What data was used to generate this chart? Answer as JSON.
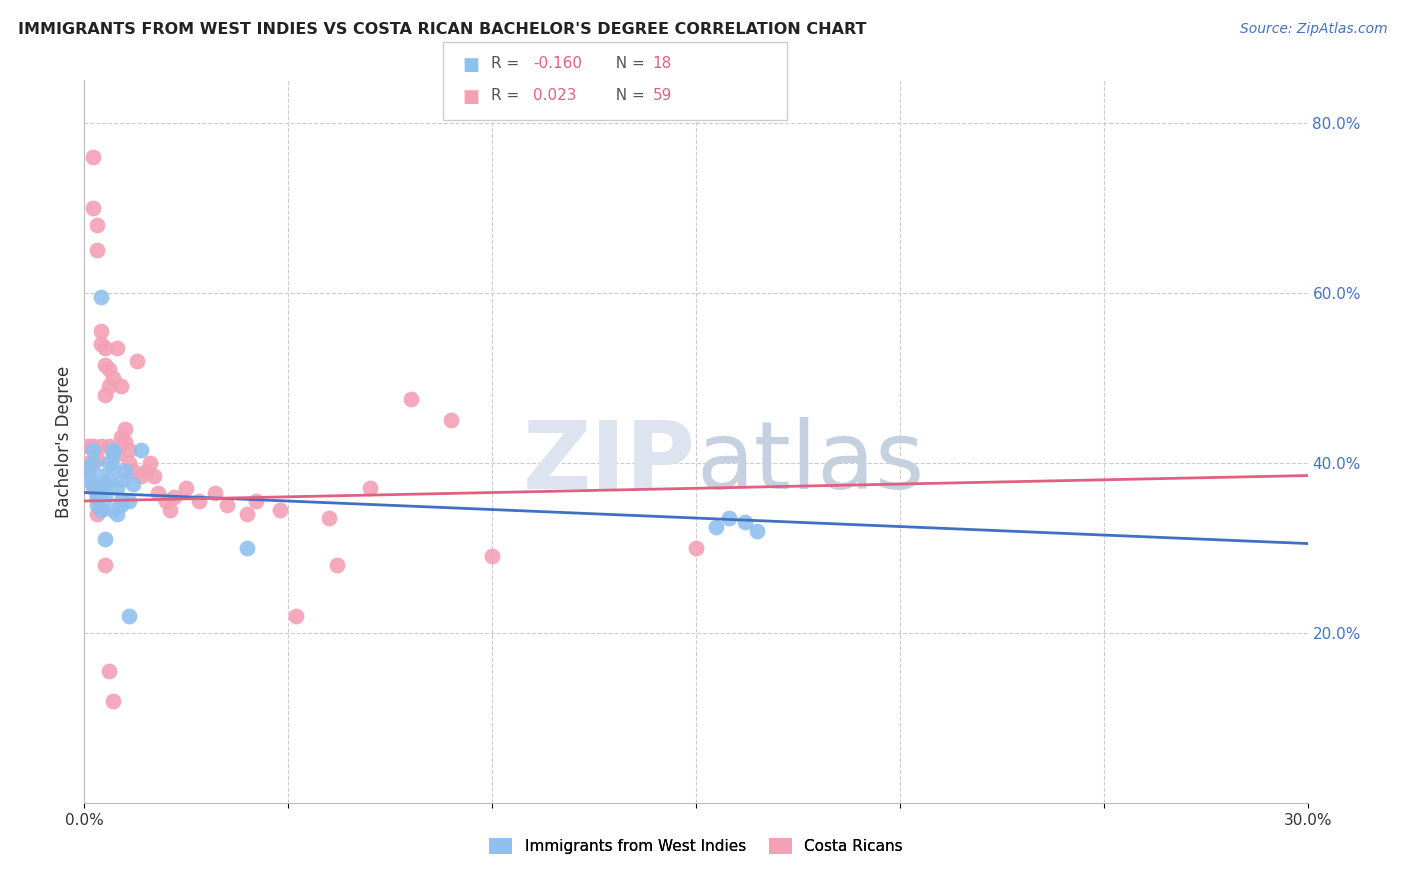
{
  "title": "IMMIGRANTS FROM WEST INDIES VS COSTA RICAN BACHELOR'S DEGREE CORRELATION CHART",
  "source": "Source: ZipAtlas.com",
  "ylabel": "Bachelor's Degree",
  "xlim": [
    0.0,
    0.3
  ],
  "ylim": [
    0.0,
    0.85
  ],
  "xticks": [
    0.0,
    0.05,
    0.1,
    0.15,
    0.2,
    0.25,
    0.3
  ],
  "xtick_labels": [
    "0.0%",
    "",
    "",
    "",
    "",
    "",
    "30.0%"
  ],
  "yticks_right": [
    0.2,
    0.4,
    0.6,
    0.8
  ],
  "ytick_labels_right": [
    "20.0%",
    "40.0%",
    "60.0%",
    "80.0%"
  ],
  "blue_color": "#90C0EE",
  "pink_color": "#F4A0B5",
  "blue_line_color": "#4070C0",
  "pink_line_color": "#E06080",
  "legend_label_blue": "Immigrants from West Indies",
  "legend_label_pink": "Costa Ricans",
  "blue_line_x0": 0.0,
  "blue_line_y0": 0.365,
  "blue_line_x1": 0.3,
  "blue_line_y1": 0.305,
  "pink_line_x0": 0.0,
  "pink_line_y0": 0.355,
  "pink_line_x1": 0.3,
  "pink_line_y1": 0.385,
  "blue_x": [
    0.001,
    0.001,
    0.002,
    0.002,
    0.002,
    0.003,
    0.003,
    0.003,
    0.004,
    0.004,
    0.005,
    0.005,
    0.006,
    0.006,
    0.007,
    0.007,
    0.008,
    0.009,
    0.01,
    0.011,
    0.155,
    0.158,
    0.162,
    0.165,
    0.003,
    0.004,
    0.007,
    0.008,
    0.009,
    0.012,
    0.014,
    0.004,
    0.005,
    0.007,
    0.009,
    0.011,
    0.04
  ],
  "blue_y": [
    0.395,
    0.38,
    0.4,
    0.375,
    0.415,
    0.365,
    0.36,
    0.35,
    0.37,
    0.385,
    0.36,
    0.375,
    0.4,
    0.38,
    0.395,
    0.41,
    0.37,
    0.38,
    0.39,
    0.355,
    0.325,
    0.335,
    0.33,
    0.32,
    0.36,
    0.345,
    0.415,
    0.34,
    0.355,
    0.375,
    0.415,
    0.595,
    0.31,
    0.345,
    0.35,
    0.22,
    0.3
  ],
  "pink_x": [
    0.001,
    0.001,
    0.001,
    0.002,
    0.002,
    0.002,
    0.003,
    0.003,
    0.003,
    0.004,
    0.004,
    0.004,
    0.005,
    0.005,
    0.005,
    0.006,
    0.006,
    0.006,
    0.007,
    0.007,
    0.008,
    0.008,
    0.009,
    0.009,
    0.01,
    0.01,
    0.011,
    0.011,
    0.012,
    0.013,
    0.014,
    0.015,
    0.016,
    0.017,
    0.018,
    0.02,
    0.021,
    0.022,
    0.025,
    0.028,
    0.032,
    0.035,
    0.04,
    0.042,
    0.048,
    0.052,
    0.06,
    0.062,
    0.07,
    0.08,
    0.09,
    0.1,
    0.15,
    0.002,
    0.003,
    0.004,
    0.005,
    0.006,
    0.007
  ],
  "pink_y": [
    0.42,
    0.39,
    0.4,
    0.76,
    0.7,
    0.42,
    0.68,
    0.65,
    0.405,
    0.555,
    0.54,
    0.42,
    0.535,
    0.515,
    0.48,
    0.49,
    0.51,
    0.42,
    0.5,
    0.415,
    0.535,
    0.41,
    0.49,
    0.43,
    0.44,
    0.425,
    0.415,
    0.4,
    0.39,
    0.52,
    0.385,
    0.39,
    0.4,
    0.385,
    0.365,
    0.355,
    0.345,
    0.36,
    0.37,
    0.355,
    0.365,
    0.35,
    0.34,
    0.355,
    0.345,
    0.22,
    0.335,
    0.28,
    0.37,
    0.475,
    0.45,
    0.29,
    0.3,
    0.37,
    0.34,
    0.345,
    0.28,
    0.155,
    0.12
  ]
}
